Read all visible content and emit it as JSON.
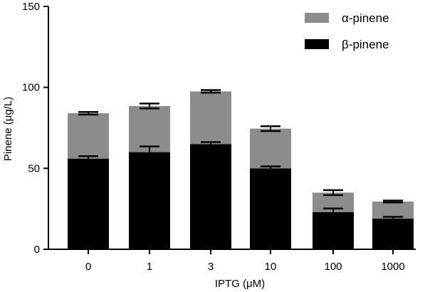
{
  "chart_data": {
    "type": "bar",
    "stacked": true,
    "title": "",
    "xlabel": "IPTG (μM)",
    "ylabel": "Pinene (μg/L)",
    "ylim": [
      0,
      150
    ],
    "yticks": [
      "0",
      "50",
      "100",
      "150"
    ],
    "categories": [
      "0",
      "1",
      "3",
      "10",
      "100",
      "1000"
    ],
    "legend_position": "top-right",
    "grid": false,
    "series": [
      {
        "name": "β-pinene",
        "color": "#000000",
        "values": [
          56,
          60,
          65,
          50,
          23,
          19
        ],
        "error": [
          1.5,
          3.5,
          1.2,
          1.2,
          2.2,
          1.0
        ]
      },
      {
        "name": "α-pinene",
        "color": "#8c8c8c",
        "values": [
          28,
          28.5,
          32.5,
          24.5,
          12,
          10.5
        ],
        "error": [
          0.8,
          1.5,
          0.8,
          1.5,
          1.5,
          0.6
        ]
      }
    ]
  }
}
